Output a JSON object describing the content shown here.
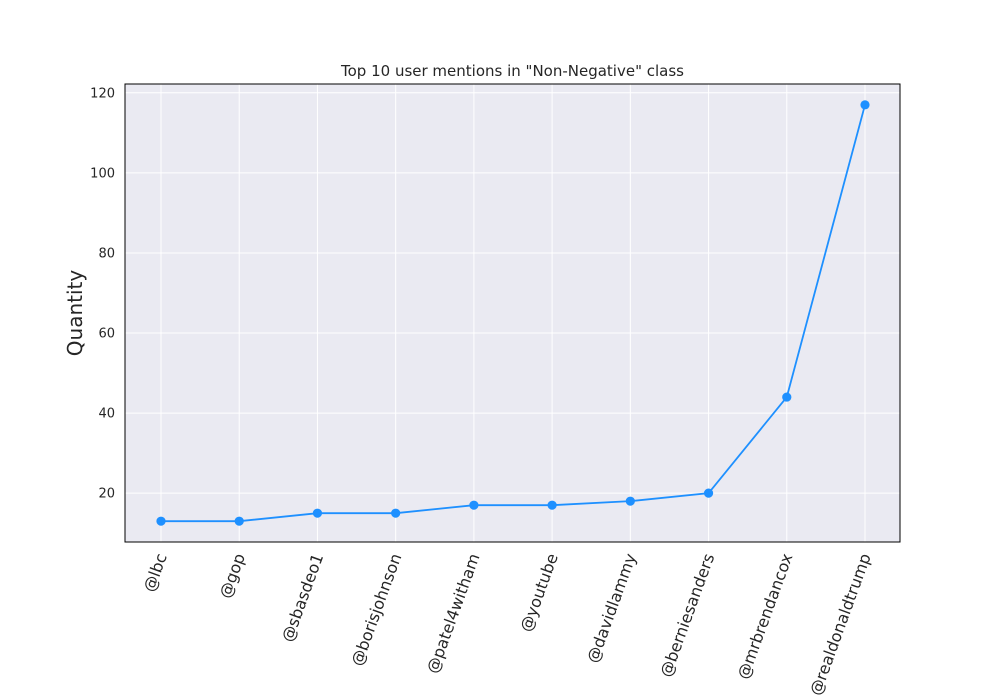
{
  "chart_data": {
    "type": "line",
    "title": "Top 10 user mentions in \"Non-Negative\" class",
    "xlabel": "",
    "ylabel": "Quantity",
    "categories": [
      "@lbc",
      "@gop",
      "@sbasdeo1",
      "@borisjohnson",
      "@patel4witham",
      "@youtube",
      "@davidlammy",
      "@berniesanders",
      "@mrbrendancox",
      "@realdonaldtrump"
    ],
    "series": [
      {
        "values": [
          13,
          13,
          15,
          15,
          17,
          17,
          18,
          20,
          44,
          117
        ]
      }
    ],
    "ylim": [
      7.8,
      122.2
    ],
    "yticks": [
      20,
      40,
      60,
      80,
      100,
      120
    ],
    "grid": true,
    "legend": "none",
    "colors": {
      "line": "#1e90ff",
      "plot_bg": "#eaeaf2",
      "grid": "#ffffff",
      "axes": "#000000"
    }
  }
}
